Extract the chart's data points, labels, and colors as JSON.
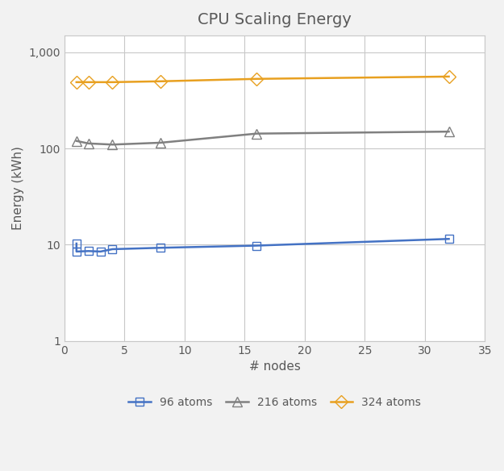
{
  "title": "CPU Scaling Energy",
  "xlabel": "# nodes",
  "ylabel": "Energy (kWh)",
  "series": [
    {
      "label": "96 atoms",
      "color": "#4472c4",
      "marker": "s",
      "markerfacecolor": "none",
      "markersize": 7,
      "linewidth": 1.8,
      "x": [
        1,
        1,
        2,
        3,
        4,
        8,
        16,
        32
      ],
      "y": [
        10.3,
        8.5,
        8.6,
        8.5,
        9.0,
        9.3,
        9.8,
        11.5
      ]
    },
    {
      "label": "216 atoms",
      "color": "#808080",
      "marker": "^",
      "markerfacecolor": "none",
      "markersize": 8,
      "linewidth": 1.8,
      "x": [
        1,
        2,
        4,
        8,
        16,
        32
      ],
      "y": [
        120,
        113,
        110,
        115,
        143,
        150
      ]
    },
    {
      "label": "324 atoms",
      "color": "#e8a020",
      "marker": "D",
      "markerfacecolor": "none",
      "markersize": 8,
      "linewidth": 1.8,
      "x": [
        1,
        2,
        4,
        8,
        16,
        32
      ],
      "y": [
        490,
        490,
        490,
        500,
        530,
        560
      ]
    }
  ],
  "xlim": [
    0,
    35
  ],
  "ylim": [
    1,
    1500
  ],
  "xticks": [
    0,
    5,
    10,
    15,
    20,
    25,
    30,
    35
  ],
  "yticks_log": [
    1,
    10,
    100,
    1000
  ],
  "ytick_labels": [
    "1",
    "10",
    "100",
    "1,000"
  ],
  "background_color": "#f2f2f2",
  "plot_bg_color": "#ffffff",
  "grid_color": "#c8c8c8",
  "title_color": "#595959",
  "title_fontsize": 14,
  "axis_label_fontsize": 11,
  "tick_fontsize": 10,
  "legend_fontsize": 10
}
